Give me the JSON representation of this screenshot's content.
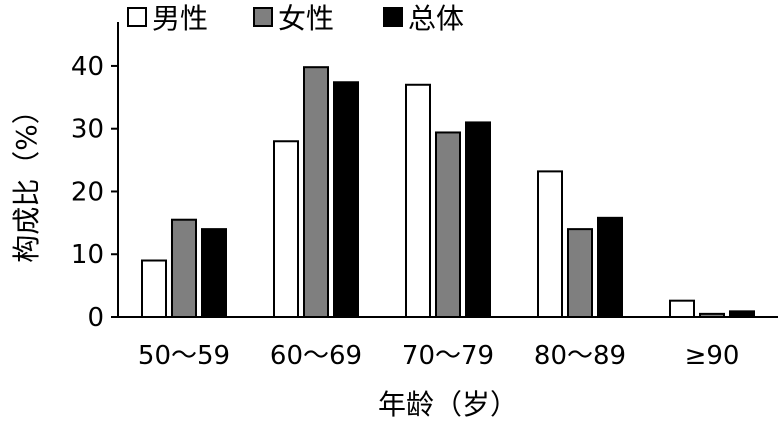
{
  "chart_data": {
    "type": "bar",
    "categories": [
      "50～59",
      "60～69",
      "70～79",
      "80～89",
      "≥90"
    ],
    "series": [
      {
        "name": "男性",
        "color": "#ffffff",
        "values": [
          9.0,
          28.0,
          37.0,
          23.2,
          2.6
        ]
      },
      {
        "name": "女性",
        "color": "#7f7f7f",
        "values": [
          15.5,
          39.8,
          29.4,
          14.0,
          0.5
        ]
      },
      {
        "name": "总体",
        "color": "#000000",
        "values": [
          14.0,
          37.4,
          31.0,
          15.8,
          0.9
        ]
      }
    ],
    "xlabel": "年龄（岁）",
    "ylabel": "构成比（%）",
    "ylim": [
      0,
      47
    ],
    "yticks": [
      0,
      10,
      20,
      30,
      40
    ],
    "legend_position": "top",
    "grid": false
  }
}
